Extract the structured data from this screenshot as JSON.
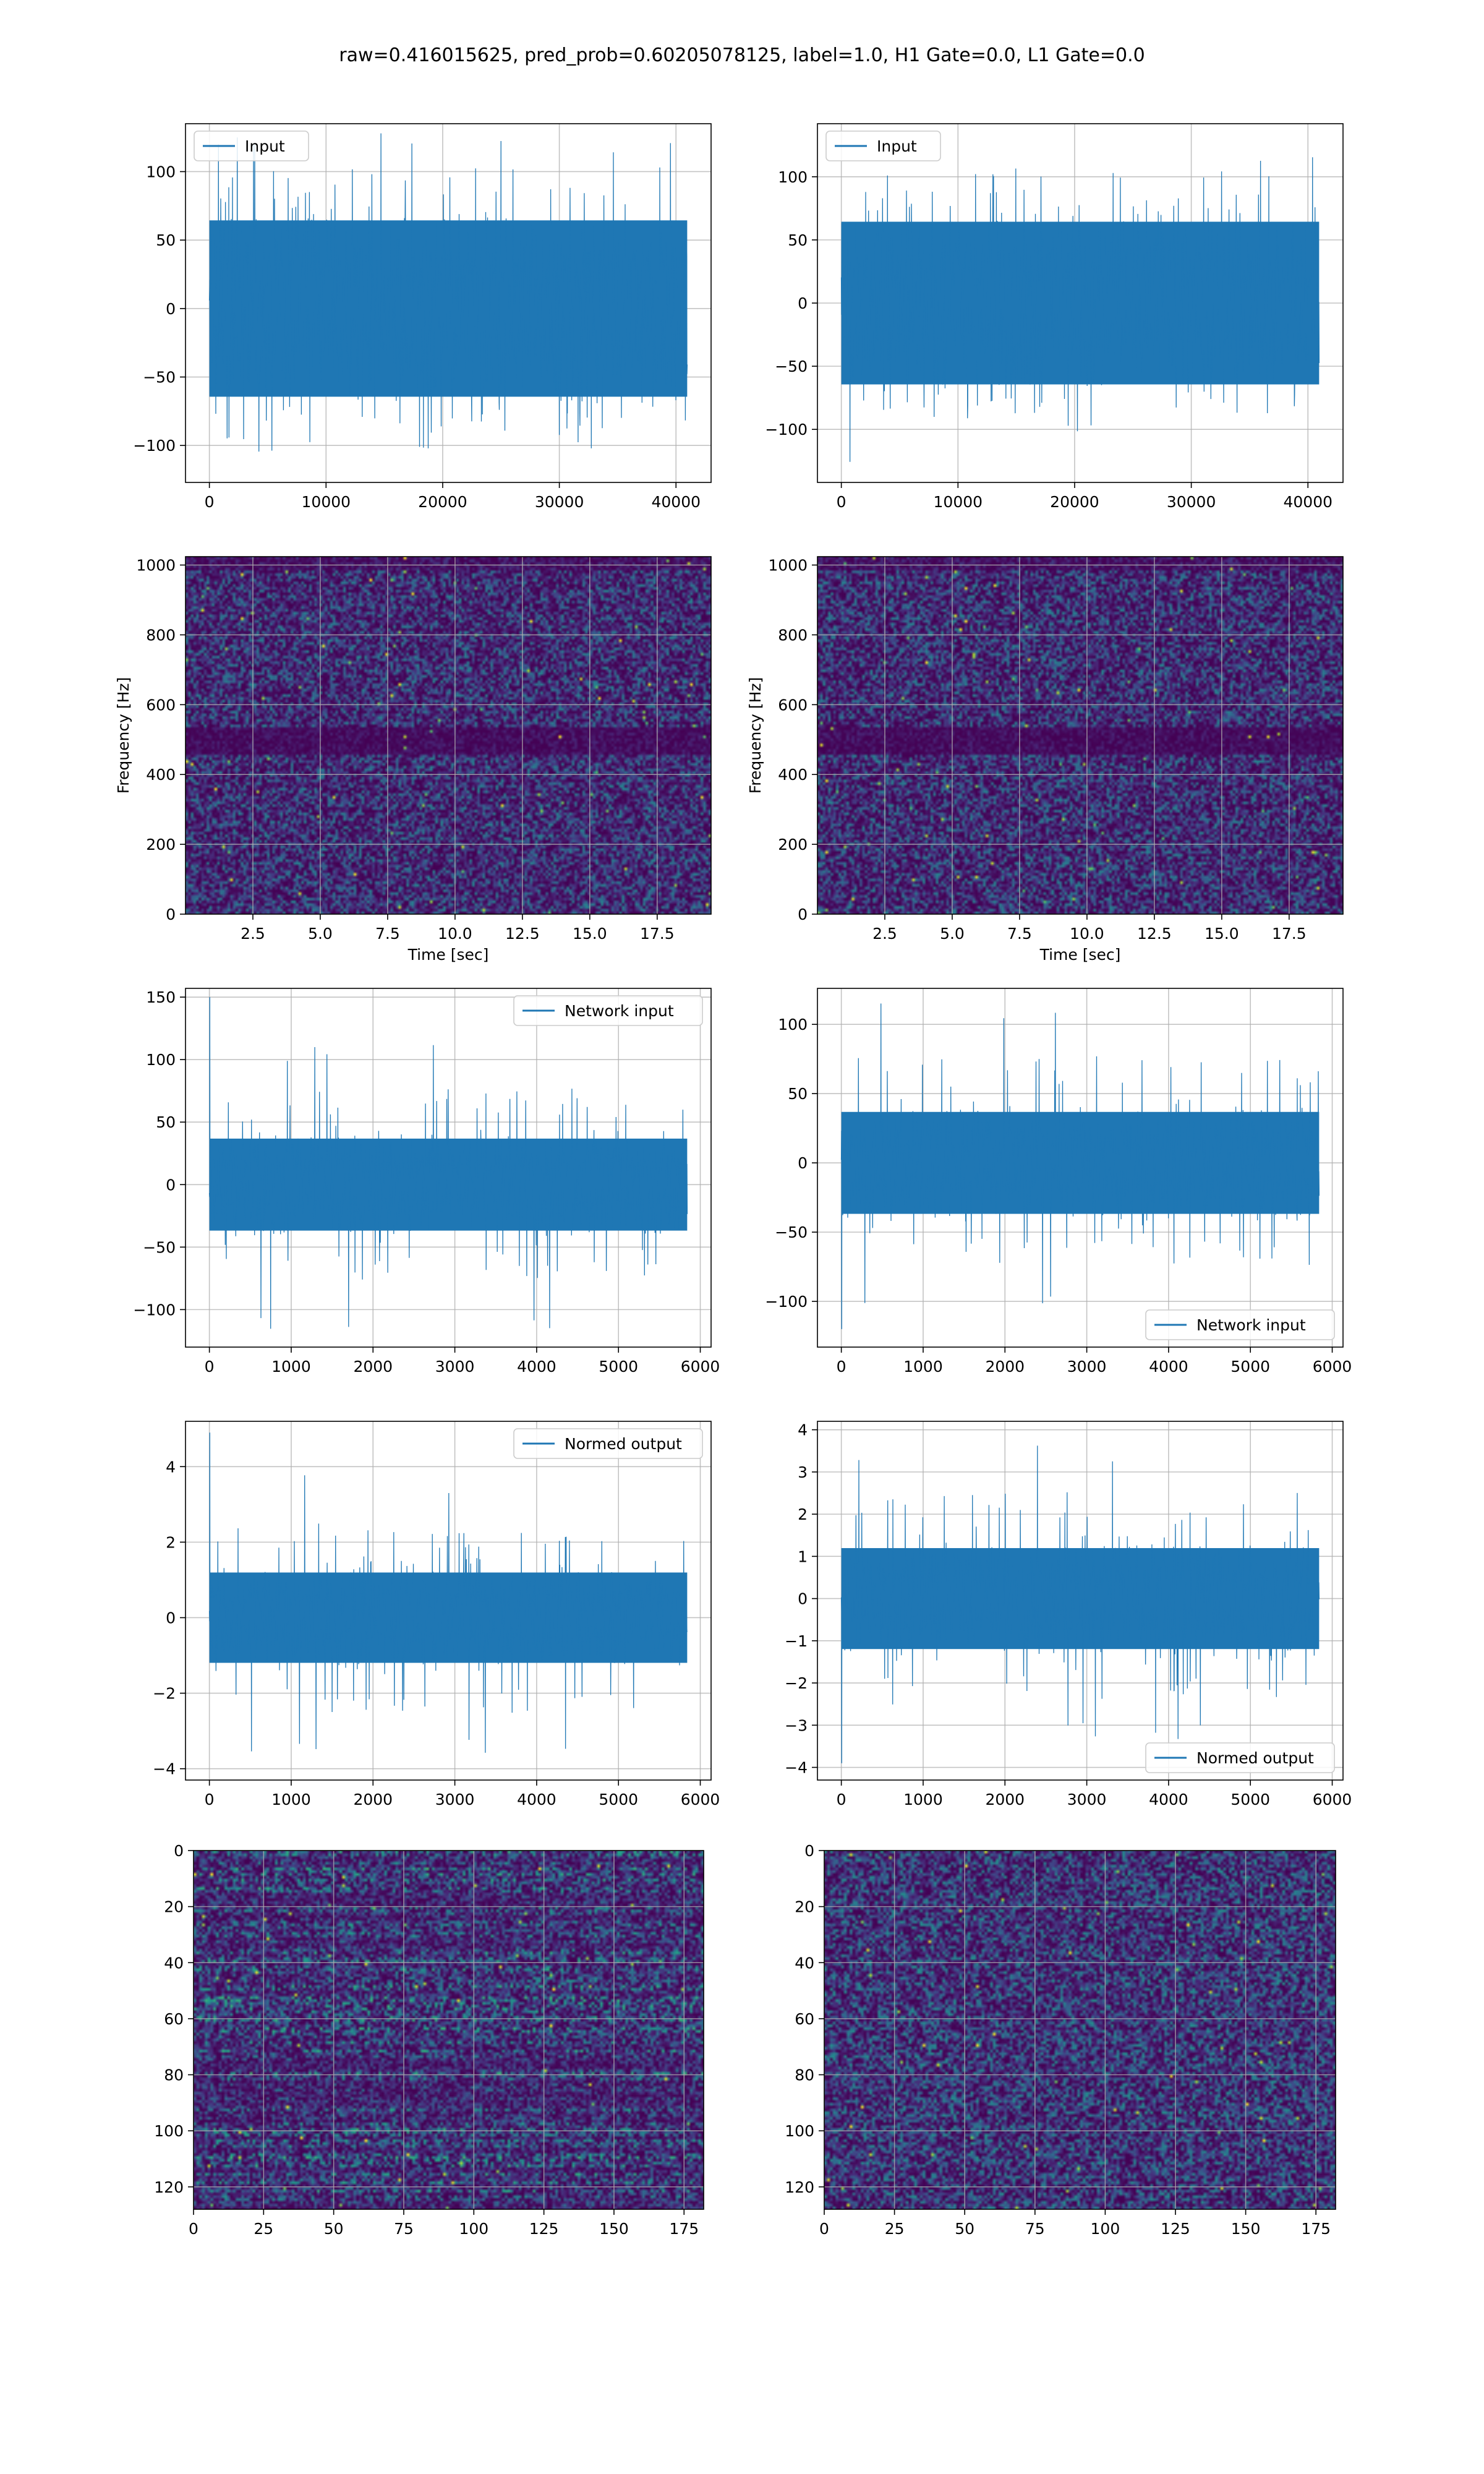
{
  "figure": {
    "title": "raw=0.416015625, pred_prob=0.60205078125, label=1.0, H1 Gate=0.0, L1 Gate=0.0"
  },
  "colors": {
    "line": "#1f77b4",
    "grid": "#b0b0b0"
  },
  "chart_data": [
    {
      "id": "input-h1",
      "type": "line",
      "legend": "Input",
      "legend_loc": "upper-left",
      "x_range": [
        0,
        40960
      ],
      "xlim": [
        -2048,
        43008
      ],
      "ylim": [
        -127,
        135
      ],
      "xticks": [
        0,
        10000,
        20000,
        30000,
        40000
      ],
      "xtick_labels": [
        "0",
        "10000",
        "20000",
        "30000",
        "40000"
      ],
      "yticks": [
        -100,
        -50,
        0,
        50,
        100
      ],
      "ytick_labels": [
        "−100",
        "−50",
        "0",
        "50",
        "100"
      ],
      "envelope": {
        "core": 70,
        "spike_typical": 95,
        "spike_max": 125,
        "spike_min": -112
      }
    },
    {
      "id": "input-l1",
      "type": "line",
      "legend": "Input",
      "legend_loc": "upper-left",
      "x_range": [
        0,
        40960
      ],
      "xlim": [
        -2048,
        43008
      ],
      "ylim": [
        -142,
        142
      ],
      "xticks": [
        0,
        10000,
        20000,
        30000,
        40000
      ],
      "xtick_labels": [
        "0",
        "10000",
        "20000",
        "30000",
        "40000"
      ],
      "yticks": [
        -100,
        -50,
        0,
        50,
        100
      ],
      "ytick_labels": [
        "−100",
        "−50",
        "0",
        "50",
        "100"
      ],
      "envelope": {
        "core": 70,
        "spike_typical": 95,
        "spike_max": 118,
        "spike_min": -128
      }
    },
    {
      "id": "spectrogram-h1",
      "type": "heatmap",
      "colormap": "viridis",
      "xlabel": "Time [sec]",
      "ylabel": "Frequency [Hz]",
      "xlim": [
        0,
        19.5
      ],
      "ylim": [
        0,
        1024
      ],
      "xticks": [
        2.5,
        5.0,
        7.5,
        10.0,
        12.5,
        15.0,
        17.5
      ],
      "xtick_labels": [
        "2.5",
        "5.0",
        "7.5",
        "10.0",
        "12.5",
        "15.0",
        "17.5"
      ],
      "yticks": [
        0,
        200,
        400,
        600,
        800,
        1000
      ],
      "ytick_labels": [
        "0",
        "200",
        "400",
        "600",
        "800",
        "1000"
      ],
      "dark_band_hz": 500
    },
    {
      "id": "spectrogram-l1",
      "type": "heatmap",
      "colormap": "viridis",
      "xlabel": "Time [sec]",
      "ylabel": "Frequency [Hz]",
      "xlim": [
        0,
        19.5
      ],
      "ylim": [
        0,
        1024
      ],
      "xticks": [
        2.5,
        5.0,
        7.5,
        10.0,
        12.5,
        15.0,
        17.5
      ],
      "xtick_labels": [
        "2.5",
        "5.0",
        "7.5",
        "10.0",
        "12.5",
        "15.0",
        "17.5"
      ],
      "yticks": [
        0,
        200,
        400,
        600,
        800,
        1000
      ],
      "ytick_labels": [
        "0",
        "200",
        "400",
        "600",
        "800",
        "1000"
      ],
      "dark_band_hz": 500
    },
    {
      "id": "network-input-h1",
      "type": "line",
      "legend": "Network input",
      "legend_loc": "upper-right",
      "x_range": [
        0,
        5840
      ],
      "xlim": [
        -292,
        6132
      ],
      "ylim": [
        -130,
        157
      ],
      "xticks": [
        0,
        1000,
        2000,
        3000,
        4000,
        5000,
        6000
      ],
      "xtick_labels": [
        "0",
        "1000",
        "2000",
        "3000",
        "4000",
        "5000",
        "6000"
      ],
      "yticks": [
        -100,
        -50,
        0,
        50,
        100,
        150
      ],
      "ytick_labels": [
        "−100",
        "−50",
        "0",
        "50",
        "100",
        "150"
      ],
      "envelope": {
        "core": 40,
        "spike_typical": 70,
        "spike_max": 115,
        "spike_min": -118,
        "start_spike": 150
      }
    },
    {
      "id": "network-input-l1",
      "type": "line",
      "legend": "Network input",
      "legend_loc": "lower-right",
      "x_range": [
        0,
        5840
      ],
      "xlim": [
        -292,
        6132
      ],
      "ylim": [
        -133,
        126
      ],
      "xticks": [
        0,
        1000,
        2000,
        3000,
        4000,
        5000,
        6000
      ],
      "xtick_labels": [
        "0",
        "1000",
        "2000",
        "3000",
        "4000",
        "5000",
        "6000"
      ],
      "yticks": [
        -100,
        -50,
        0,
        50,
        100
      ],
      "ytick_labels": [
        "−100",
        "−50",
        "0",
        "50",
        "100"
      ],
      "envelope": {
        "core": 40,
        "spike_typical": 70,
        "spike_max": 116,
        "spike_min": -105,
        "start_spike": -120
      }
    },
    {
      "id": "normed-output-h1",
      "type": "line",
      "legend": "Normed output",
      "legend_loc": "upper-right",
      "x_range": [
        0,
        5840
      ],
      "xlim": [
        -292,
        6132
      ],
      "ylim": [
        -4.3,
        5.2
      ],
      "xticks": [
        0,
        1000,
        2000,
        3000,
        4000,
        5000,
        6000
      ],
      "xtick_labels": [
        "0",
        "1000",
        "2000",
        "3000",
        "4000",
        "5000",
        "6000"
      ],
      "yticks": [
        -4,
        -2,
        0,
        2,
        4
      ],
      "ytick_labels": [
        "−4",
        "−2",
        "0",
        "2",
        "4"
      ],
      "envelope": {
        "core": 1.3,
        "spike_typical": 2.3,
        "spike_max": 3.8,
        "spike_min": -3.8,
        "start_spike": 4.9
      }
    },
    {
      "id": "normed-output-l1",
      "type": "line",
      "legend": "Normed output",
      "legend_loc": "lower-right",
      "x_range": [
        0,
        5840
      ],
      "xlim": [
        -292,
        6132
      ],
      "ylim": [
        -4.3,
        4.2
      ],
      "xticks": [
        0,
        1000,
        2000,
        3000,
        4000,
        5000,
        6000
      ],
      "xtick_labels": [
        "0",
        "1000",
        "2000",
        "3000",
        "4000",
        "5000",
        "6000"
      ],
      "yticks": [
        -4,
        -3,
        -2,
        -1,
        0,
        1,
        2,
        3,
        4
      ],
      "ytick_labels": [
        "−4",
        "−3",
        "−2",
        "−1",
        "0",
        "1",
        "2",
        "3",
        "4"
      ],
      "envelope": {
        "core": 1.3,
        "spike_typical": 2.3,
        "spike_max": 3.8,
        "spike_min": -3.4,
        "start_spike": -3.9
      }
    },
    {
      "id": "feature-map-h1",
      "type": "heatmap",
      "colormap": "viridis",
      "xlim": [
        0,
        182
      ],
      "ylim": [
        128,
        0
      ],
      "rows": 128,
      "cols": 182,
      "xticks": [
        0,
        25,
        50,
        75,
        100,
        125,
        150,
        175
      ],
      "xtick_labels": [
        "0",
        "25",
        "50",
        "75",
        "100",
        "125",
        "150",
        "175"
      ],
      "yticks": [
        0,
        20,
        40,
        60,
        80,
        100,
        120
      ],
      "ytick_labels": [
        "0",
        "20",
        "40",
        "60",
        "80",
        "100",
        "120"
      ],
      "row_banded": true
    },
    {
      "id": "feature-map-l1",
      "type": "heatmap",
      "colormap": "viridis",
      "xlim": [
        0,
        182
      ],
      "ylim": [
        128,
        0
      ],
      "rows": 128,
      "cols": 182,
      "xticks": [
        0,
        25,
        50,
        75,
        100,
        125,
        150,
        175
      ],
      "xtick_labels": [
        "0",
        "25",
        "50",
        "75",
        "100",
        "125",
        "150",
        "175"
      ],
      "yticks": [
        0,
        20,
        40,
        60,
        80,
        100,
        120
      ],
      "ytick_labels": [
        "0",
        "20",
        "40",
        "60",
        "80",
        "100",
        "120"
      ],
      "row_banded": false
    }
  ]
}
